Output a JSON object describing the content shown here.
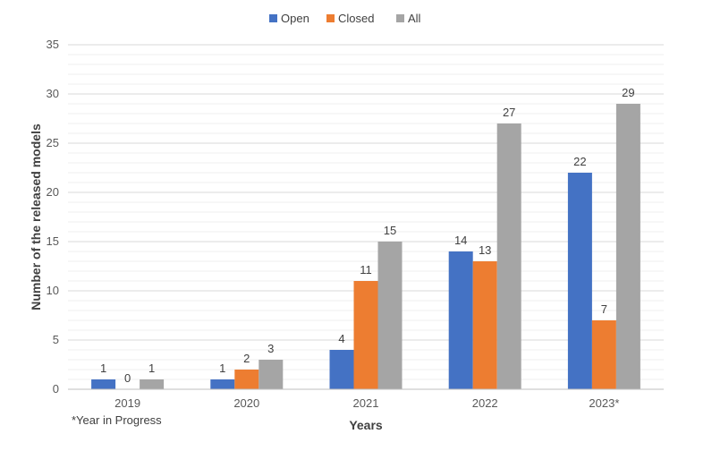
{
  "chart_data": {
    "type": "bar",
    "title": "",
    "xlabel": "Years",
    "ylabel": "Number of the released models",
    "categories": [
      "2019",
      "2020",
      "2021",
      "2022",
      "2023*"
    ],
    "series": [
      {
        "name": "Open",
        "values": [
          1,
          1,
          4,
          14,
          22
        ]
      },
      {
        "name": "Closed",
        "values": [
          0,
          2,
          11,
          13,
          7
        ]
      },
      {
        "name": "All",
        "values": [
          1,
          3,
          15,
          27,
          29
        ]
      }
    ],
    "ylim": [
      0,
      35
    ],
    "yticks": [
      0,
      5,
      10,
      15,
      20,
      25,
      30,
      35
    ],
    "grid": true,
    "legend_position": "top-center",
    "footnote": "*Year in Progress",
    "colors": {
      "Open": "#4472C4",
      "Closed": "#ED7D31",
      "All": "#A5A5A5"
    }
  }
}
